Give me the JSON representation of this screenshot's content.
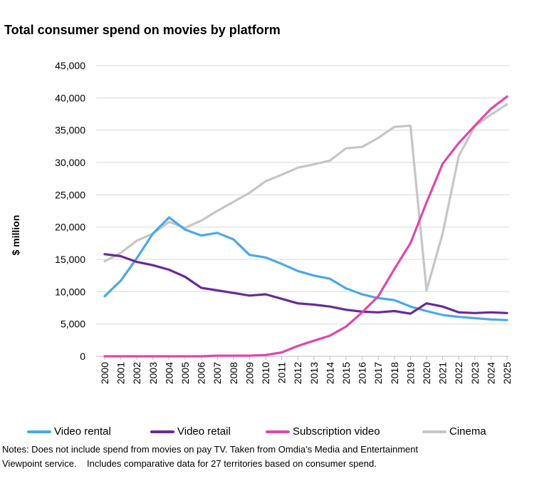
{
  "title": "Total consumer spend on movies by platform",
  "notes": [
    "Notes: Does not include spend from movies on pay TV. Taken from Omdia’s Media and Entertainment",
    "Viewpoint service.    Includes comparative data for 27 territories based on consumer spend."
  ],
  "chart_data": {
    "type": "line",
    "title": "Total consumer spend on movies by platform",
    "xlabel": "",
    "ylabel": "$ million",
    "ylim": [
      0,
      45000
    ],
    "yticks": [
      "0",
      "5,000",
      "10,000",
      "15,000",
      "20,000",
      "25,000",
      "30,000",
      "35,000",
      "40,000",
      "45,000"
    ],
    "x": [
      "2000",
      "2001",
      "2002",
      "2003",
      "2004",
      "2005",
      "2006",
      "2007",
      "2008",
      "2009",
      "2010",
      "2011",
      "2012",
      "2013",
      "2014",
      "2015",
      "2016",
      "2017",
      "2018",
      "2019",
      "2020",
      "2021",
      "2022",
      "2023",
      "2024",
      "2025"
    ],
    "grid": "horizontal",
    "legend_position": "bottom",
    "series": [
      {
        "name": "Video rental",
        "color": "#4aa8e8",
        "values": [
          9300,
          11700,
          15200,
          19000,
          21500,
          19600,
          18700,
          19100,
          18100,
          15700,
          15300,
          14300,
          13200,
          12500,
          12000,
          10500,
          9600,
          9000,
          8700,
          7700,
          7000,
          6400,
          6100,
          5900,
          5700,
          5600
        ]
      },
      {
        "name": "Video retail",
        "color": "#6a2a96",
        "values": [
          15800,
          15500,
          14600,
          14100,
          13400,
          12300,
          10600,
          10200,
          9800,
          9400,
          9600,
          8900,
          8200,
          8000,
          7700,
          7200,
          6900,
          6800,
          7000,
          6600,
          8200,
          7700,
          6800,
          6700,
          6800,
          6700
        ]
      },
      {
        "name": "Subscription video",
        "color": "#e047a8",
        "values": [
          0,
          0,
          0,
          0,
          0,
          0,
          0,
          100,
          100,
          100,
          200,
          600,
          1600,
          2400,
          3200,
          4600,
          6800,
          9300,
          13500,
          17500,
          23800,
          29800,
          33000,
          35700,
          38300,
          40200
        ]
      },
      {
        "name": "Cinema",
        "color": "#c6c6c6",
        "values": [
          14700,
          16000,
          17900,
          19000,
          20800,
          19900,
          21000,
          22500,
          23900,
          25300,
          27100,
          28100,
          29200,
          29700,
          30300,
          32200,
          32400,
          33800,
          35500,
          35700,
          10200,
          19000,
          31000,
          35600,
          37400,
          39000
        ]
      }
    ]
  }
}
